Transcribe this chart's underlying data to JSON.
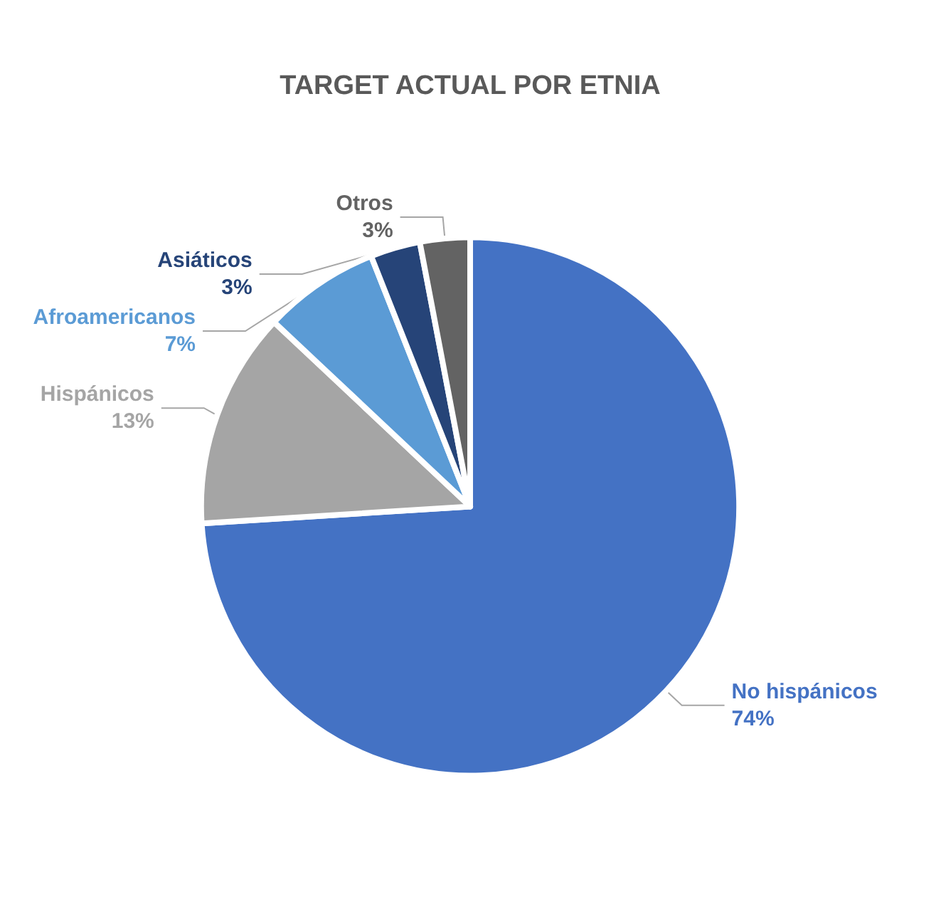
{
  "chart_data": {
    "type": "pie",
    "title": "TARGET ACTUAL POR ETNIA",
    "categories": [
      "No hispánicos",
      "Hispánicos",
      "Afroamericanos",
      "Asiáticos",
      "Otros"
    ],
    "values": [
      74,
      13,
      7,
      3,
      3
    ],
    "colors": [
      "#4472c4",
      "#a5a5a5",
      "#5b9bd5",
      "#264478",
      "#636363"
    ],
    "value_labels": [
      "74%",
      "13%",
      "7%",
      "3%",
      "3%"
    ],
    "legend": false
  }
}
